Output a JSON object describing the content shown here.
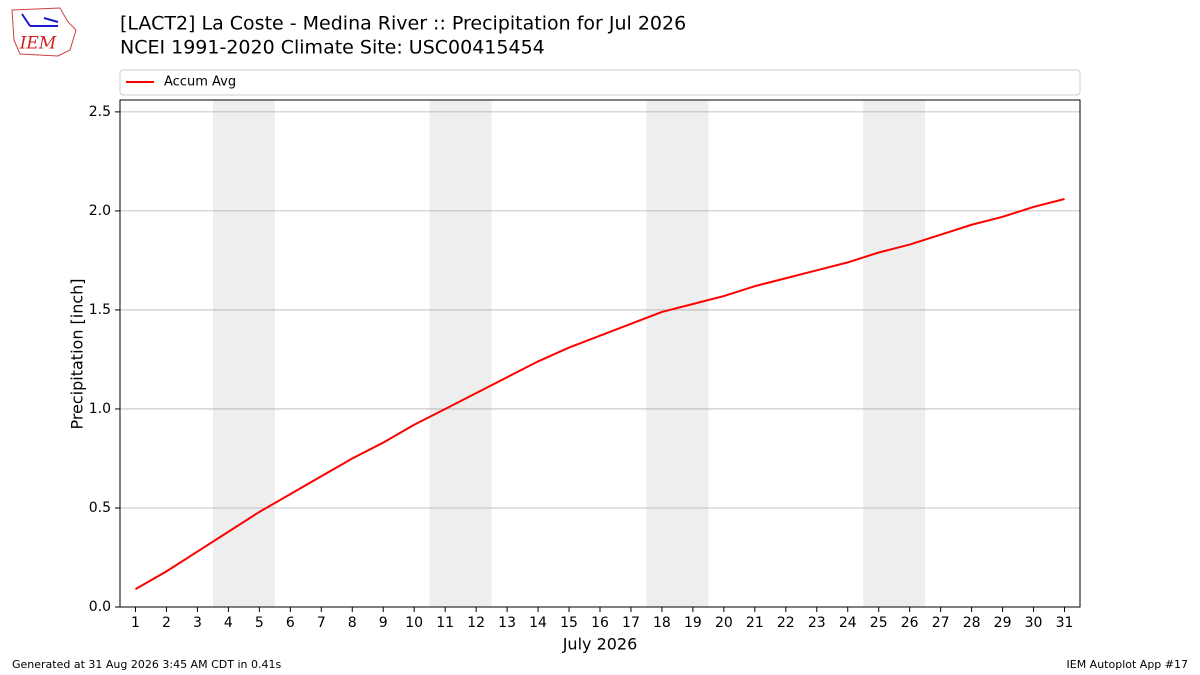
{
  "logo_text": "IEM",
  "chart_data": {
    "type": "line",
    "title": "[LACT2] La Coste - Medina River :: Precipitation for Jul 2026",
    "subtitle": "NCEI 1991-2020 Climate Site: USC00415454",
    "x_label": "July 2026",
    "y_label": "Precipitation [inch]",
    "x": [
      1,
      2,
      3,
      4,
      5,
      6,
      7,
      8,
      9,
      10,
      11,
      12,
      13,
      14,
      15,
      16,
      17,
      18,
      19,
      20,
      21,
      22,
      23,
      24,
      25,
      26,
      27,
      28,
      29,
      30,
      31
    ],
    "series": [
      {
        "name": "Accum Avg",
        "color": "#ff0000",
        "values": [
          0.09,
          0.18,
          0.28,
          0.38,
          0.48,
          0.57,
          0.66,
          0.75,
          0.83,
          0.92,
          1.0,
          1.08,
          1.16,
          1.24,
          1.31,
          1.37,
          1.43,
          1.49,
          1.53,
          1.57,
          1.62,
          1.66,
          1.7,
          1.74,
          1.79,
          1.83,
          1.88,
          1.93,
          1.97,
          2.02,
          2.06
        ]
      }
    ],
    "xlim": [
      0.5,
      31.5
    ],
    "xticks": [
      1,
      2,
      3,
      4,
      5,
      6,
      7,
      8,
      9,
      10,
      11,
      12,
      13,
      14,
      15,
      16,
      17,
      18,
      19,
      20,
      21,
      22,
      23,
      24,
      25,
      26,
      27,
      28,
      29,
      30,
      31
    ],
    "ylim": [
      0,
      2.56
    ],
    "yticks": [
      {
        "value": 0,
        "label": "0.0"
      },
      0.5,
      {
        "value": 1,
        "label": "1.0"
      },
      1.5,
      {
        "value": 2,
        "label": "2.0"
      },
      2.5
    ],
    "grid": true,
    "shaded_spans": [
      [
        3.5,
        5.5
      ],
      [
        10.5,
        12.5
      ],
      [
        17.5,
        19.5
      ],
      [
        24.5,
        26.5
      ]
    ],
    "shade_color": "#eeeeee",
    "legend": "top",
    "footer_left": "Generated at 31 Aug 2026 3:45 AM CDT in 0.41s",
    "footer_right": "IEM Autoplot App #17"
  }
}
